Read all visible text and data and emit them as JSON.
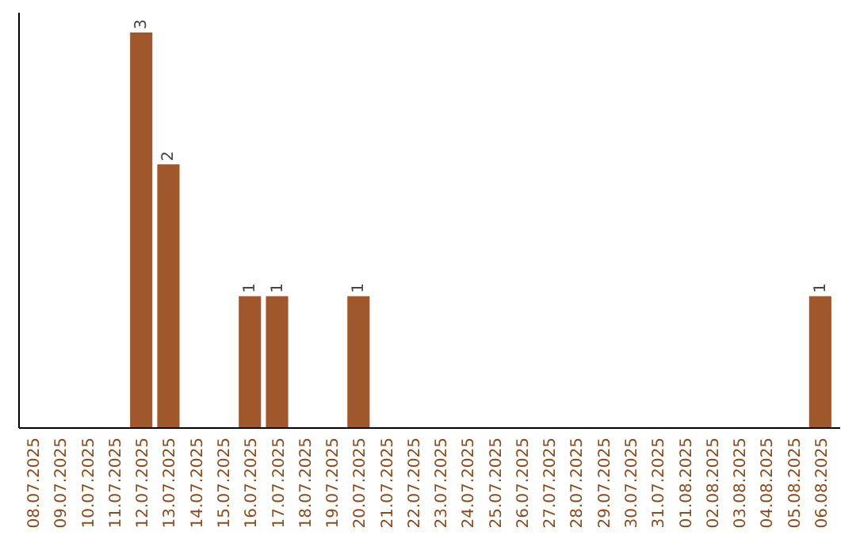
{
  "chart_data": {
    "type": "bar",
    "categories": [
      "08.07.2025",
      "09.07.2025",
      "10.07.2025",
      "11.07.2025",
      "12.07.2025",
      "13.07.2025",
      "14.07.2025",
      "15.07.2025",
      "16.07.2025",
      "17.07.2025",
      "18.07.2025",
      "19.07.2025",
      "20.07.2025",
      "21.07.2025",
      "22.07.2025",
      "23.07.2025",
      "24.07.2025",
      "25.07.2025",
      "26.07.2025",
      "27.07.2025",
      "28.07.2025",
      "29.07.2025",
      "30.07.2025",
      "31.07.2025",
      "01.08.2025",
      "02.08.2025",
      "03.08.2025",
      "04.08.2025",
      "05.08.2025",
      "06.08.2025"
    ],
    "values": [
      0,
      0,
      0,
      0,
      3,
      2,
      0,
      0,
      1,
      1,
      0,
      0,
      1,
      0,
      0,
      0,
      0,
      0,
      0,
      0,
      0,
      0,
      0,
      0,
      0,
      0,
      0,
      0,
      0,
      1
    ],
    "value_labels": [
      null,
      null,
      null,
      null,
      "3",
      "2",
      null,
      null,
      "1",
      "1",
      null,
      null,
      "1",
      null,
      null,
      null,
      null,
      null,
      null,
      null,
      null,
      null,
      null,
      null,
      null,
      null,
      null,
      null,
      null,
      "1"
    ],
    "color": "#a0572b"
  }
}
